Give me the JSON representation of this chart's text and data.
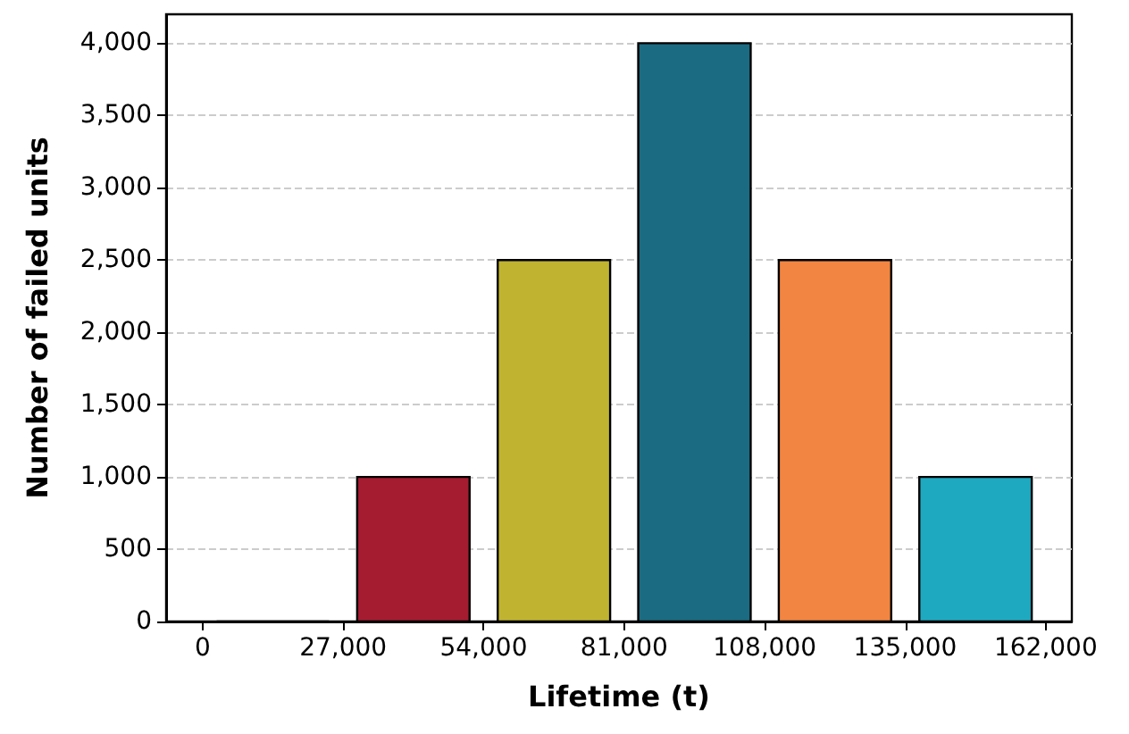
{
  "chart_data": {
    "type": "histogram",
    "xlabel": "Lifetime (t)",
    "ylabel": "Number of failed units",
    "bins": [
      0,
      27000,
      54000,
      81000,
      108000,
      135000,
      162000
    ],
    "values": [
      0,
      1000,
      2500,
      4000,
      2500,
      1000
    ],
    "colors": [
      "#000000",
      "#a51c30",
      "#c0b32f",
      "#1b6b82",
      "#f28541",
      "#1ea9c1"
    ],
    "xlim": [
      -7000,
      167000
    ],
    "xticks": [
      0,
      {
        "value": 27000,
        "label": "27,000"
      },
      {
        "value": 54000,
        "label": "54,000"
      },
      {
        "value": 81000,
        "label": "81,000"
      },
      {
        "value": 108000,
        "label": "108,000"
      },
      {
        "value": 135000,
        "label": "135,000"
      },
      {
        "value": 162000,
        "label": "162,000"
      }
    ],
    "ylim": [
      0,
      4200
    ],
    "yticks": [
      0,
      500,
      {
        "value": 1000,
        "label": "1,000"
      },
      {
        "value": 1500,
        "label": "1,500"
      },
      {
        "value": 2000,
        "label": "2,000"
      },
      {
        "value": 2500,
        "label": "2,500"
      },
      {
        "value": 3000,
        "label": "3,000"
      },
      {
        "value": 3500,
        "label": "3,500"
      },
      {
        "value": 4000,
        "label": "4,000"
      }
    ],
    "grid": "y"
  }
}
